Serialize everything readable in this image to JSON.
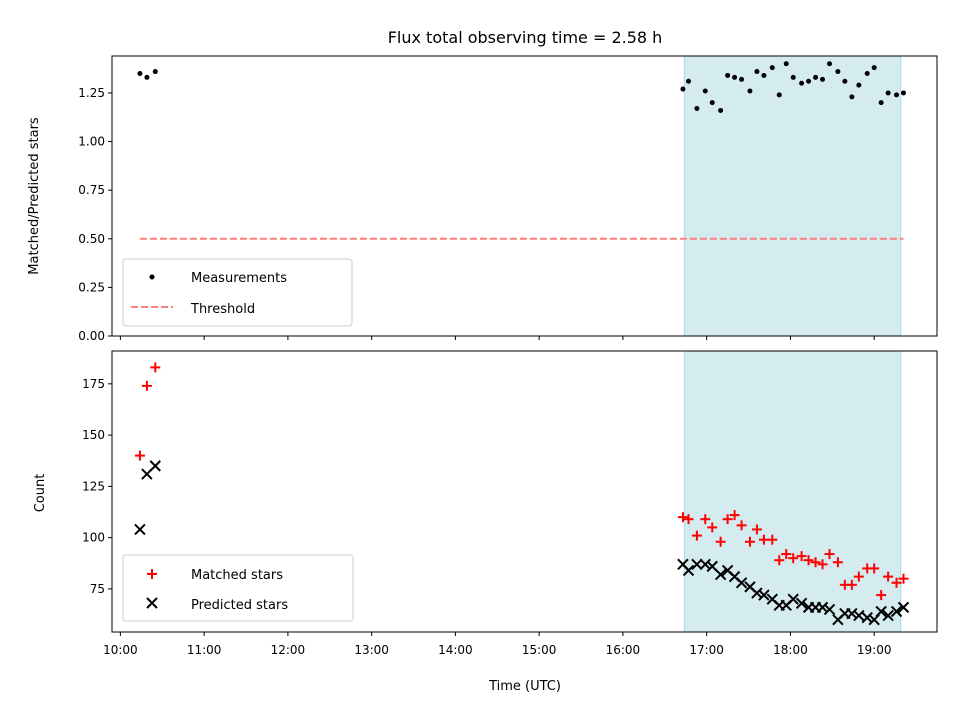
{
  "chart_data": [
    {
      "type": "scatter",
      "title": "Flux total observing time = 2.58 h",
      "xlabel": "",
      "ylabel": "Matched/Predicted stars",
      "xlim": [
        "09:54",
        "19:45"
      ],
      "ylim": [
        0,
        1.44
      ],
      "yticks": [
        0.0,
        0.25,
        0.5,
        0.75,
        1.0,
        1.25
      ],
      "ytick_labels": [
        "0.00",
        "0.25",
        "0.50",
        "0.75",
        "1.00",
        "1.25"
      ],
      "shaded_region": {
        "x": [
          "16:44",
          "19:19"
        ],
        "color": "#d4ebf0"
      },
      "legend_location": "lower left",
      "series": [
        {
          "name": "Measurements",
          "marker": "dot",
          "color": "#000000",
          "x": [
            "10:14",
            "10:19",
            "10:25",
            "16:43",
            "16:47",
            "16:53",
            "16:59",
            "17:04",
            "17:10",
            "17:15",
            "17:20",
            "17:25",
            "17:31",
            "17:36",
            "17:41",
            "17:47",
            "17:52",
            "17:57",
            "18:02",
            "18:08",
            "18:13",
            "18:18",
            "18:23",
            "18:28",
            "18:34",
            "18:39",
            "18:44",
            "18:49",
            "18:55",
            "19:00",
            "19:05",
            "19:10",
            "19:16",
            "19:21"
          ],
          "y": [
            1.35,
            1.33,
            1.36,
            1.27,
            1.31,
            1.17,
            1.26,
            1.2,
            1.16,
            1.34,
            1.33,
            1.32,
            1.26,
            1.36,
            1.34,
            1.38,
            1.24,
            1.4,
            1.33,
            1.3,
            1.31,
            1.33,
            1.32,
            1.4,
            1.36,
            1.31,
            1.23,
            1.29,
            1.35,
            1.38,
            1.2,
            1.25,
            1.24,
            1.25
          ]
        },
        {
          "name": "Threshold",
          "marker": "dashed-line",
          "color": "#ff7f7f",
          "x": [
            "10:14",
            "19:21"
          ],
          "y": [
            0.5,
            0.5
          ]
        }
      ]
    },
    {
      "type": "scatter",
      "title": "",
      "xlabel": "Time (UTC)",
      "ylabel": "Count",
      "xlim": [
        "09:54",
        "19:45"
      ],
      "ylim": [
        54,
        191
      ],
      "xticks": [
        "10:00",
        "11:00",
        "12:00",
        "13:00",
        "14:00",
        "15:00",
        "16:00",
        "17:00",
        "18:00",
        "19:00"
      ],
      "yticks": [
        75,
        100,
        125,
        150,
        175
      ],
      "shaded_region": {
        "x": [
          "16:44",
          "19:19"
        ],
        "color": "#d4ebf0"
      },
      "legend_location": "lower left",
      "series": [
        {
          "name": "Matched stars",
          "marker": "plus",
          "color": "#ff0000",
          "x": [
            "10:14",
            "10:19",
            "10:25",
            "16:43",
            "16:47",
            "16:53",
            "16:59",
            "17:04",
            "17:10",
            "17:15",
            "17:20",
            "17:25",
            "17:31",
            "17:36",
            "17:41",
            "17:47",
            "17:52",
            "17:57",
            "18:02",
            "18:08",
            "18:13",
            "18:18",
            "18:23",
            "18:28",
            "18:34",
            "18:39",
            "18:44",
            "18:49",
            "18:55",
            "19:00",
            "19:05",
            "19:10",
            "19:16",
            "19:21"
          ],
          "y": [
            140,
            174,
            183,
            110,
            109,
            101,
            109,
            105,
            98,
            109,
            111,
            106,
            98,
            104,
            99,
            99,
            89,
            92,
            90,
            91,
            89,
            88,
            87,
            92,
            88,
            77,
            77,
            81,
            85,
            85,
            72,
            81,
            78,
            80
          ]
        },
        {
          "name": "Predicted stars",
          "marker": "x",
          "color": "#000000",
          "x": [
            "10:14",
            "10:19",
            "10:25",
            "16:43",
            "16:47",
            "16:53",
            "16:59",
            "17:04",
            "17:10",
            "17:15",
            "17:20",
            "17:25",
            "17:31",
            "17:36",
            "17:41",
            "17:47",
            "17:52",
            "17:57",
            "18:02",
            "18:08",
            "18:13",
            "18:18",
            "18:23",
            "18:28",
            "18:34",
            "18:39",
            "18:44",
            "18:49",
            "18:55",
            "19:00",
            "19:05",
            "19:10",
            "19:16",
            "19:21"
          ],
          "y": [
            104,
            131,
            135,
            87,
            84,
            87,
            87,
            86,
            82,
            84,
            81,
            78,
            76,
            73,
            72,
            70,
            67,
            67,
            70,
            68,
            66,
            66,
            66,
            65,
            60,
            63,
            63,
            62,
            61,
            60,
            64,
            62,
            64,
            66
          ]
        }
      ]
    }
  ]
}
